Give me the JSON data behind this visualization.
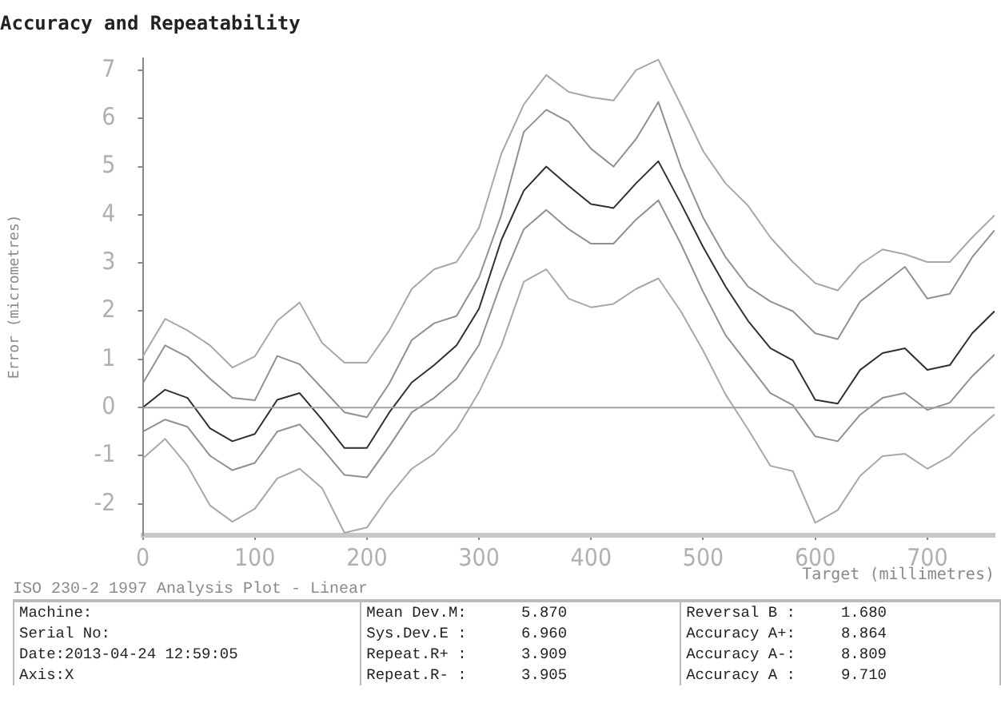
{
  "chart_data": {
    "type": "line",
    "title": "Accuracy and Repeatability",
    "xlabel": "Target (millimetres)",
    "ylabel": "Error (micrometres)",
    "x": [
      0,
      20,
      40,
      60,
      80,
      100,
      120,
      140,
      160,
      180,
      200,
      220,
      240,
      260,
      280,
      300,
      320,
      340,
      360,
      380,
      400,
      420,
      440,
      460,
      480,
      500,
      520,
      540,
      560,
      580,
      600,
      620,
      640,
      660,
      680,
      700,
      720,
      740,
      760
    ],
    "series": [
      {
        "color": "#a8a8a8",
        "values": [
          1.06,
          1.84,
          1.6,
          1.29,
          0.83,
          1.06,
          1.8,
          2.18,
          1.34,
          0.93,
          0.93,
          1.6,
          2.46,
          2.87,
          3.02,
          3.73,
          5.27,
          6.29,
          6.9,
          6.55,
          6.44,
          6.37,
          7.0,
          7.22,
          6.29,
          5.32,
          4.65,
          4.19,
          3.53,
          3.02,
          2.58,
          2.43,
          2.97,
          3.28,
          3.18,
          3.02,
          3.02,
          3.53,
          3.99
        ]
      },
      {
        "color": "#909090",
        "values": [
          0.5,
          1.29,
          1.05,
          0.6,
          0.2,
          0.15,
          1.07,
          0.9,
          0.4,
          -0.1,
          -0.2,
          0.5,
          1.4,
          1.75,
          1.9,
          2.7,
          4.0,
          5.72,
          6.18,
          5.93,
          5.37,
          5.0,
          5.57,
          6.34,
          5.0,
          3.94,
          3.12,
          2.51,
          2.2,
          2.0,
          1.54,
          1.42,
          2.2,
          2.56,
          2.92,
          2.26,
          2.36,
          3.12,
          3.68
        ]
      },
      {
        "color": "#303030",
        "values": [
          0,
          0.37,
          0.2,
          -0.43,
          -0.7,
          -0.55,
          0.16,
          0.3,
          -0.25,
          -0.84,
          -0.84,
          -0.1,
          0.52,
          0.88,
          1.29,
          2.05,
          3.48,
          4.5,
          5.0,
          4.6,
          4.22,
          4.14,
          4.65,
          5.11,
          4.24,
          3.33,
          2.51,
          1.8,
          1.23,
          0.98,
          0.16,
          0.08,
          0.78,
          1.13,
          1.23,
          0.78,
          0.88,
          1.54,
          2.0
        ]
      },
      {
        "color": "#909090",
        "values": [
          -0.5,
          -0.25,
          -0.4,
          -1.0,
          -1.3,
          -1.15,
          -0.5,
          -0.35,
          -0.85,
          -1.4,
          -1.45,
          -0.8,
          -0.1,
          0.2,
          0.6,
          1.3,
          2.6,
          3.7,
          4.1,
          3.7,
          3.4,
          3.4,
          3.9,
          4.3,
          3.4,
          2.4,
          1.5,
          0.9,
          0.3,
          0.05,
          -0.6,
          -0.7,
          -0.15,
          0.2,
          0.3,
          -0.05,
          0.1,
          0.65,
          1.1
        ]
      },
      {
        "color": "#a8a8a8",
        "values": [
          -1.06,
          -0.65,
          -1.21,
          -2.03,
          -2.37,
          -2.1,
          -1.47,
          -1.27,
          -1.67,
          -2.6,
          -2.49,
          -1.83,
          -1.27,
          -0.96,
          -0.45,
          0.32,
          1.29,
          2.61,
          2.87,
          2.26,
          2.08,
          2.15,
          2.46,
          2.68,
          2.0,
          1.18,
          0.27,
          -0.45,
          -1.21,
          -1.32,
          -2.39,
          -2.13,
          -1.42,
          -1.01,
          -0.96,
          -1.27,
          -1.01,
          -0.55,
          -0.14
        ]
      }
    ],
    "xlim": [
      0,
      760
    ],
    "xticks": [
      0,
      100,
      200,
      300,
      400,
      500,
      600,
      700
    ],
    "ylim": [
      -2.65,
      7.25
    ],
    "yticks": [
      -2,
      -1,
      0,
      1,
      2,
      3,
      4,
      5,
      6,
      7
    ],
    "ref_lines": [
      {
        "axis": "y",
        "value": 0,
        "color": "#a0a0a0"
      }
    ],
    "grid": false,
    "legend": false,
    "marker": "none",
    "line_style": "solid",
    "annotations": [
      "ISO 230-2 1997 Analysis Plot - Linear",
      "Machine:",
      "Mean Dev.M:      5.870",
      "Reversal B :     1.680",
      "Serial No:",
      "Sys.Dev.E :      6.960",
      "Accuracy A+:     8.864",
      "Date:2013-04-24 12:59:05",
      "Repeat.R+ :      3.909",
      "Accuracy A-:     8.809",
      "Axis:X",
      "Repeat.R- :      3.905",
      "Accuracy A :     9.710"
    ]
  }
}
